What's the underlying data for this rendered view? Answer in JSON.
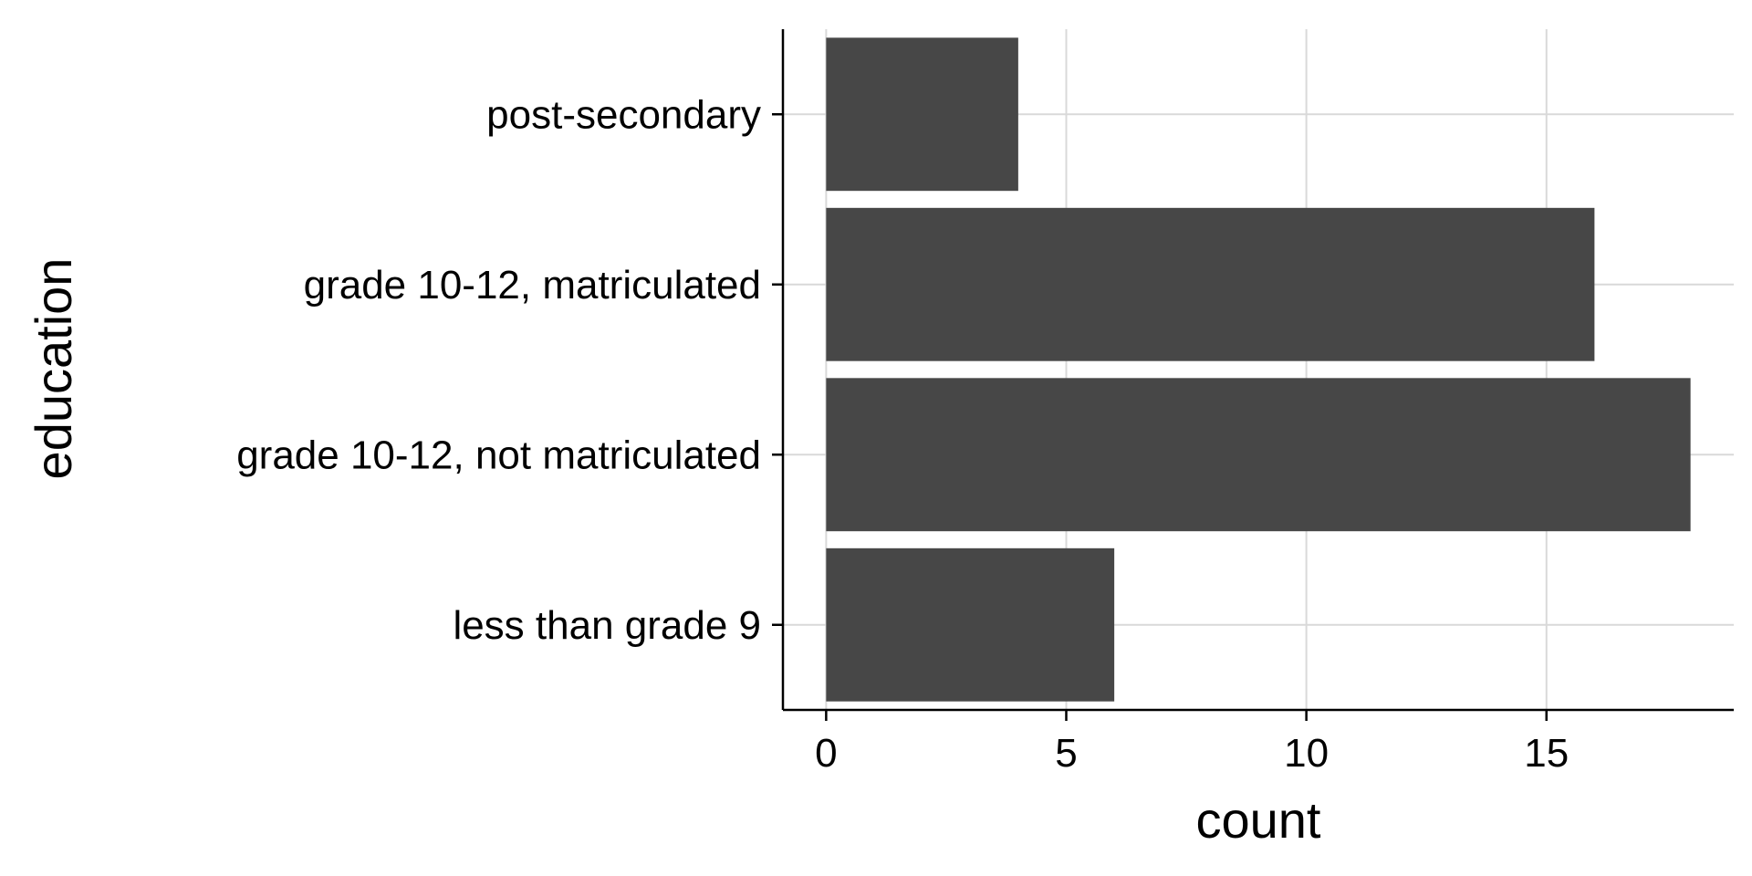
{
  "chart_data": {
    "type": "bar",
    "orientation": "horizontal",
    "categories": [
      "less than grade 9",
      "grade 10-12, not matriculated",
      "grade 10-12, matriculated",
      "post-secondary"
    ],
    "values": [
      6,
      18,
      16,
      4
    ],
    "title": "",
    "xlabel": "count",
    "ylabel": "education",
    "xlim": [
      -0.9,
      18.9
    ],
    "x_ticks": [
      0,
      5,
      10,
      15
    ],
    "x_tick_labels": [
      "0",
      "5",
      "10",
      "15"
    ],
    "grid": true,
    "legend": "none",
    "colors": {
      "bar": "#474747",
      "grid": "#d9d9d9",
      "axis": "#000000",
      "background": "#ffffff"
    }
  }
}
